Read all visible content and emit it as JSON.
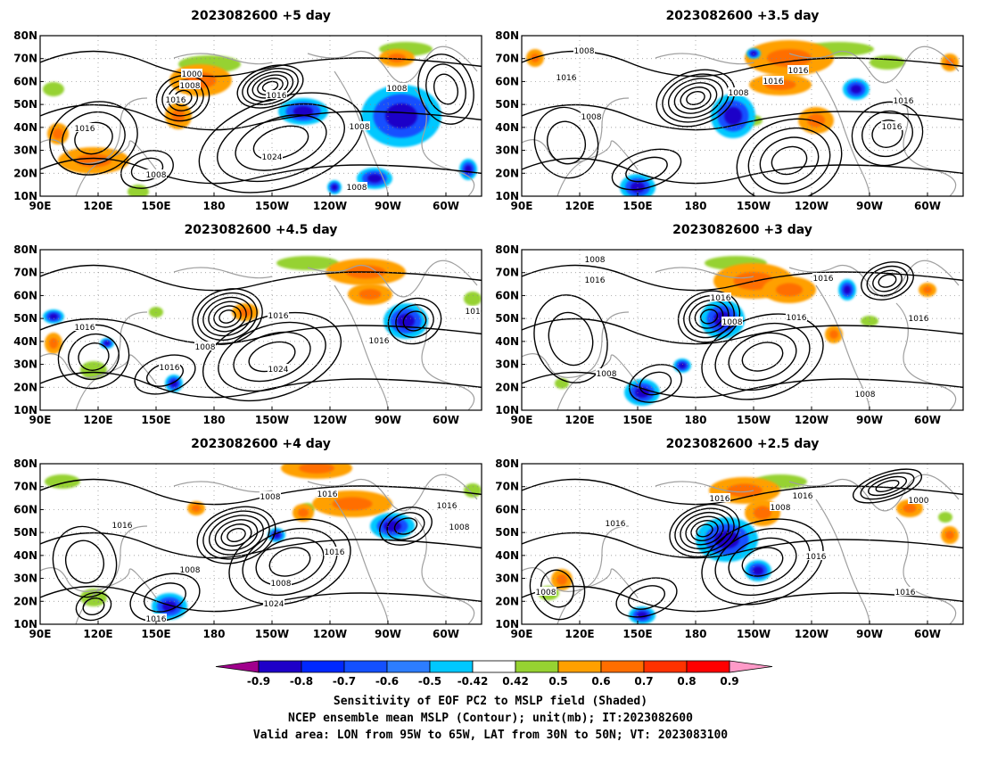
{
  "panels": [
    {
      "title": "2023082600 +5 day",
      "contour_labels": [
        "1000",
        "1008",
        "1016",
        "1016",
        "1016",
        "1008",
        "1008",
        "1024",
        "1008",
        "1008"
      ],
      "blue_regions": [
        "northwest Pacific / Alaska",
        "eastern North America",
        "Gulf of Mexico"
      ],
      "orange_regions": [
        "East Siberia",
        "Gulf of Alaska",
        "south China"
      ]
    },
    {
      "title": "2023082600 +3.5 day",
      "contour_labels": [
        "1008",
        "1016",
        "1008",
        "1008",
        "1016",
        "1016",
        "1016",
        "1016"
      ],
      "blue_regions": [
        "central North Pacific",
        "western Pacific",
        "Hudson Bay"
      ],
      "orange_regions": [
        "Alaska",
        "northern Canada"
      ]
    },
    {
      "title": "2023082600 +4.5 day",
      "contour_labels": [
        "1016",
        "1016",
        "1008",
        "1016",
        "1024",
        "1016",
        "1016"
      ],
      "blue_regions": [
        "Great Lakes",
        "western Pacific"
      ],
      "orange_regions": [
        "Bering Sea",
        "western Canada",
        "Aleutians"
      ]
    },
    {
      "title": "2023082600 +3 day",
      "contour_labels": [
        "1008",
        "1016",
        "1016",
        "1008",
        "1016",
        "1016",
        "1008",
        "1016",
        "1008"
      ],
      "blue_regions": [
        "central North Pacific",
        "western Pacific",
        "eastern Canada"
      ],
      "orange_regions": [
        "Alaska",
        "Gulf of Alaska"
      ]
    },
    {
      "title": "2023082600 +4 day",
      "contour_labels": [
        "1016",
        "1008",
        "1016",
        "1016",
        "1008",
        "1016",
        "1008",
        "1024",
        "1016",
        "1008"
      ],
      "blue_regions": [
        "eastern North America",
        "western Pacific"
      ],
      "orange_regions": [
        "Alaska",
        "western Canada"
      ]
    },
    {
      "title": "2023082600 +2.5 day",
      "contour_labels": [
        "1016",
        "1016",
        "1008",
        "1016",
        "1000",
        "1016",
        "1008",
        "1016"
      ],
      "blue_regions": [
        "central North Pacific",
        "western Pacific"
      ],
      "orange_regions": [
        "Alaska",
        "Hudson Bay"
      ]
    }
  ],
  "axes": {
    "lat_ticks": [
      "80N",
      "70N",
      "60N",
      "50N",
      "40N",
      "30N",
      "20N",
      "10N"
    ],
    "lon_ticks": [
      "90E",
      "120E",
      "150E",
      "180",
      "150W",
      "120W",
      "90W",
      "60W"
    ],
    "lat_range": [
      10,
      80
    ],
    "lon_range": [
      90,
      305
    ]
  },
  "colorbar": {
    "ticks": [
      "-0.9",
      "-0.8",
      "-0.7",
      "-0.6",
      "-0.5",
      "-0.42",
      "0.42",
      "0.5",
      "0.6",
      "0.7",
      "0.8",
      "0.9"
    ],
    "colors": [
      "#a0008c",
      "#1e00c8",
      "#0028ff",
      "#1450ff",
      "#2d7dff",
      "#00c8ff",
      "#ffffff",
      "#96d232",
      "#ffa000",
      "#ff6e00",
      "#ff3200",
      "#ff0000",
      "#ff9ac8"
    ]
  },
  "caption": {
    "line1": "Sensitivity of EOF PC2 to MSLP field (Shaded)",
    "line2": "NCEP ensemble mean MSLP (Contour); unit(mb); IT:2023082600",
    "line3": "Valid area: LON from 95W to 65W, LAT from 30N to 50N; VT: 2023083100"
  }
}
